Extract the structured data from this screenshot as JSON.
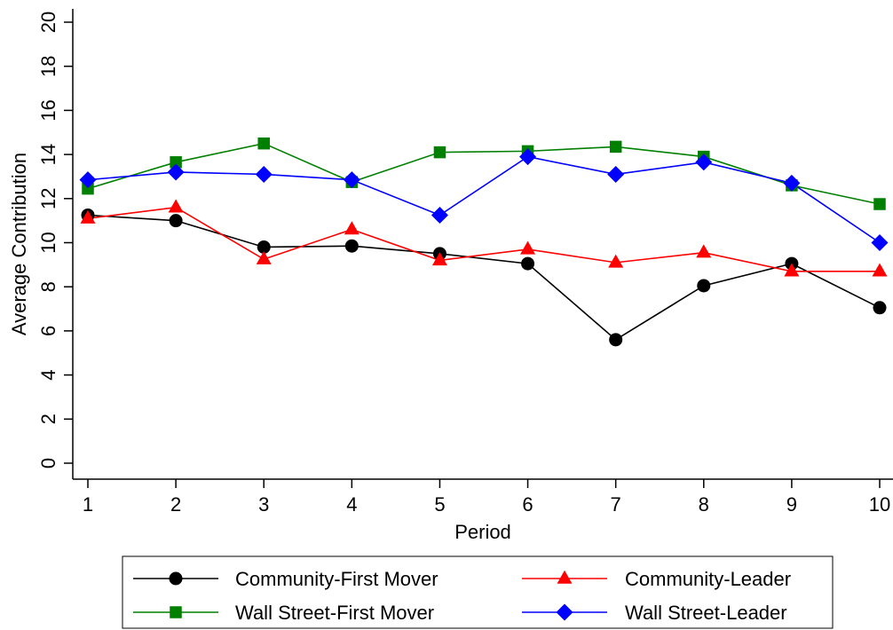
{
  "chart_data": {
    "type": "line",
    "xlabel": "Period",
    "ylabel": "Average Contribution",
    "x": [
      1,
      2,
      3,
      4,
      5,
      6,
      7,
      8,
      9,
      10
    ],
    "xticks": [
      "1",
      "2",
      "3",
      "4",
      "5",
      "6",
      "7",
      "8",
      "9",
      "10"
    ],
    "yticks": [
      "0",
      "2",
      "4",
      "6",
      "8",
      "10",
      "12",
      "14",
      "16",
      "18",
      "20"
    ],
    "ylim": [
      0,
      20
    ],
    "xlim": [
      1,
      10
    ],
    "grid": false,
    "legend_position": "bottom",
    "series": [
      {
        "name": "Community-First Mover",
        "color": "#000000",
        "marker": "circle",
        "values": [
          11.25,
          11.0,
          9.8,
          9.85,
          9.5,
          9.05,
          5.6,
          8.05,
          9.05,
          7.05
        ]
      },
      {
        "name": "Community-Leader",
        "color": "#ff0000",
        "marker": "triangle",
        "values": [
          11.1,
          11.6,
          9.25,
          10.6,
          9.2,
          9.7,
          9.1,
          9.55,
          8.7,
          8.7
        ]
      },
      {
        "name": "Wall Street-First Mover",
        "color": "#008000",
        "marker": "square",
        "values": [
          12.45,
          13.65,
          14.5,
          12.75,
          14.1,
          14.15,
          14.35,
          13.9,
          12.6,
          11.75
        ]
      },
      {
        "name": "Wall Street-Leader",
        "color": "#0000ff",
        "marker": "diamond",
        "values": [
          12.85,
          13.2,
          13.1,
          12.85,
          11.25,
          13.9,
          13.1,
          13.65,
          12.7,
          10.0
        ]
      }
    ]
  }
}
